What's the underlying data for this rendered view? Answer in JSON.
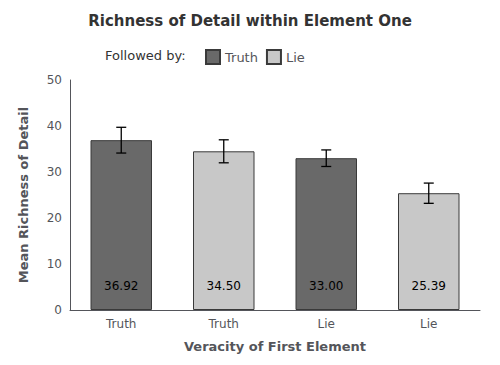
{
  "chart_data": {
    "type": "bar",
    "title": "Richness of Detail within Element One",
    "subtitle": "Followed by:",
    "xlabel": "Veracity of First Element",
    "ylabel": "Mean Richness of Detail",
    "categories": [
      "Truth",
      "Truth",
      "Lie",
      "Lie"
    ],
    "series": [
      {
        "name": "Truth",
        "color": "#696969",
        "values": [
          36.92,
          null,
          33.0,
          null
        ],
        "errors": [
          2.8,
          null,
          1.8,
          null
        ],
        "value_labels": [
          "36.92",
          null,
          "33.00",
          null
        ]
      },
      {
        "name": "Lie",
        "color": "#c8c8c8",
        "values": [
          null,
          34.5,
          null,
          25.39
        ],
        "errors": [
          null,
          2.5,
          null,
          2.2
        ],
        "value_labels": [
          null,
          "34.50",
          null,
          "25.39"
        ]
      }
    ],
    "ylim": [
      0,
      50
    ],
    "yticks": [
      0,
      10,
      20,
      30,
      40,
      50
    ],
    "legend": "top",
    "data_labels": true,
    "grid": false
  }
}
